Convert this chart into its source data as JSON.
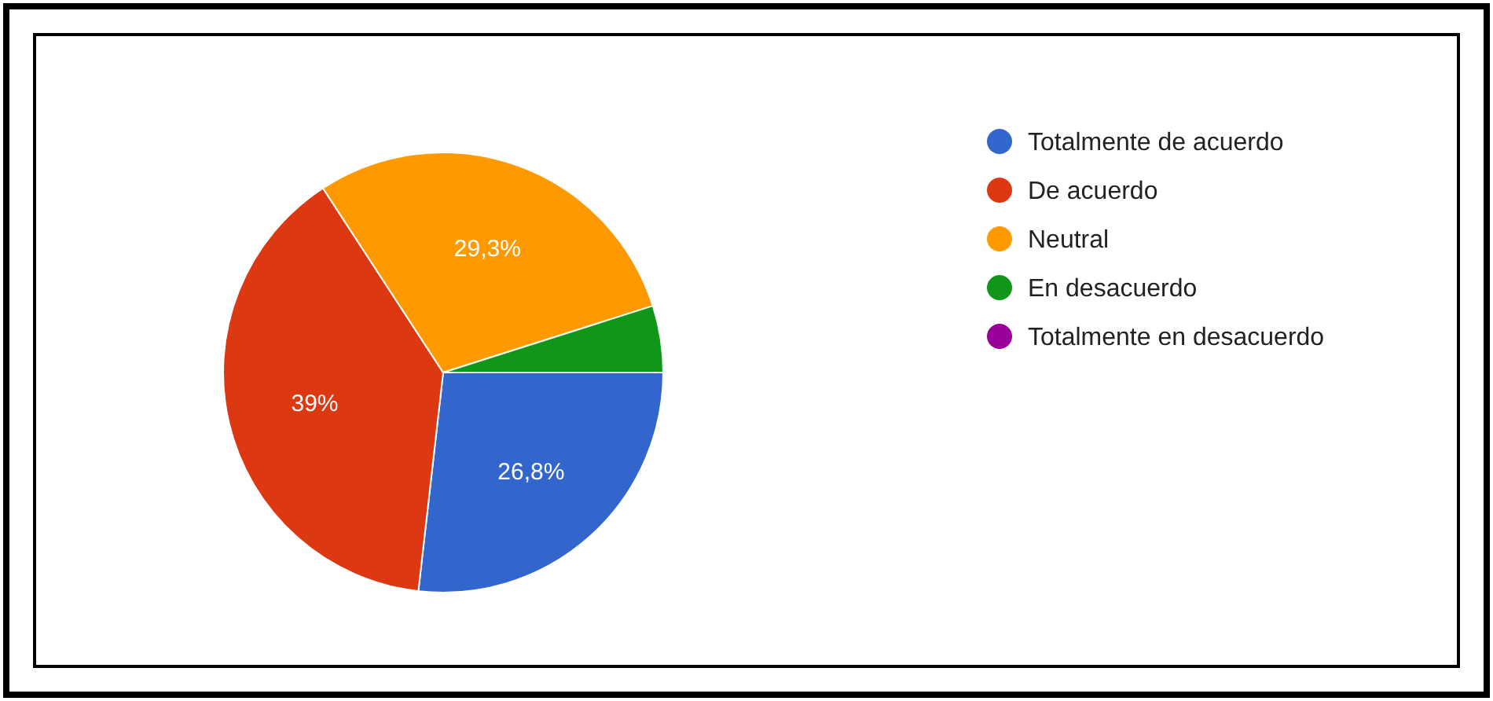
{
  "chart_data": {
    "type": "pie",
    "categories": [
      "Totalmente de acuerdo",
      "De acuerdo",
      "Neutral",
      "En desacuerdo",
      "Totalmente en desacuerdo"
    ],
    "values": [
      26.8,
      39,
      29.3,
      4.9,
      0
    ],
    "colors": [
      "#3366cc",
      "#dc3912",
      "#ff9900",
      "#109618",
      "#990099"
    ],
    "value_labels": [
      "26,8%",
      "39%",
      "29,3%",
      null,
      null
    ],
    "legend": "right"
  }
}
